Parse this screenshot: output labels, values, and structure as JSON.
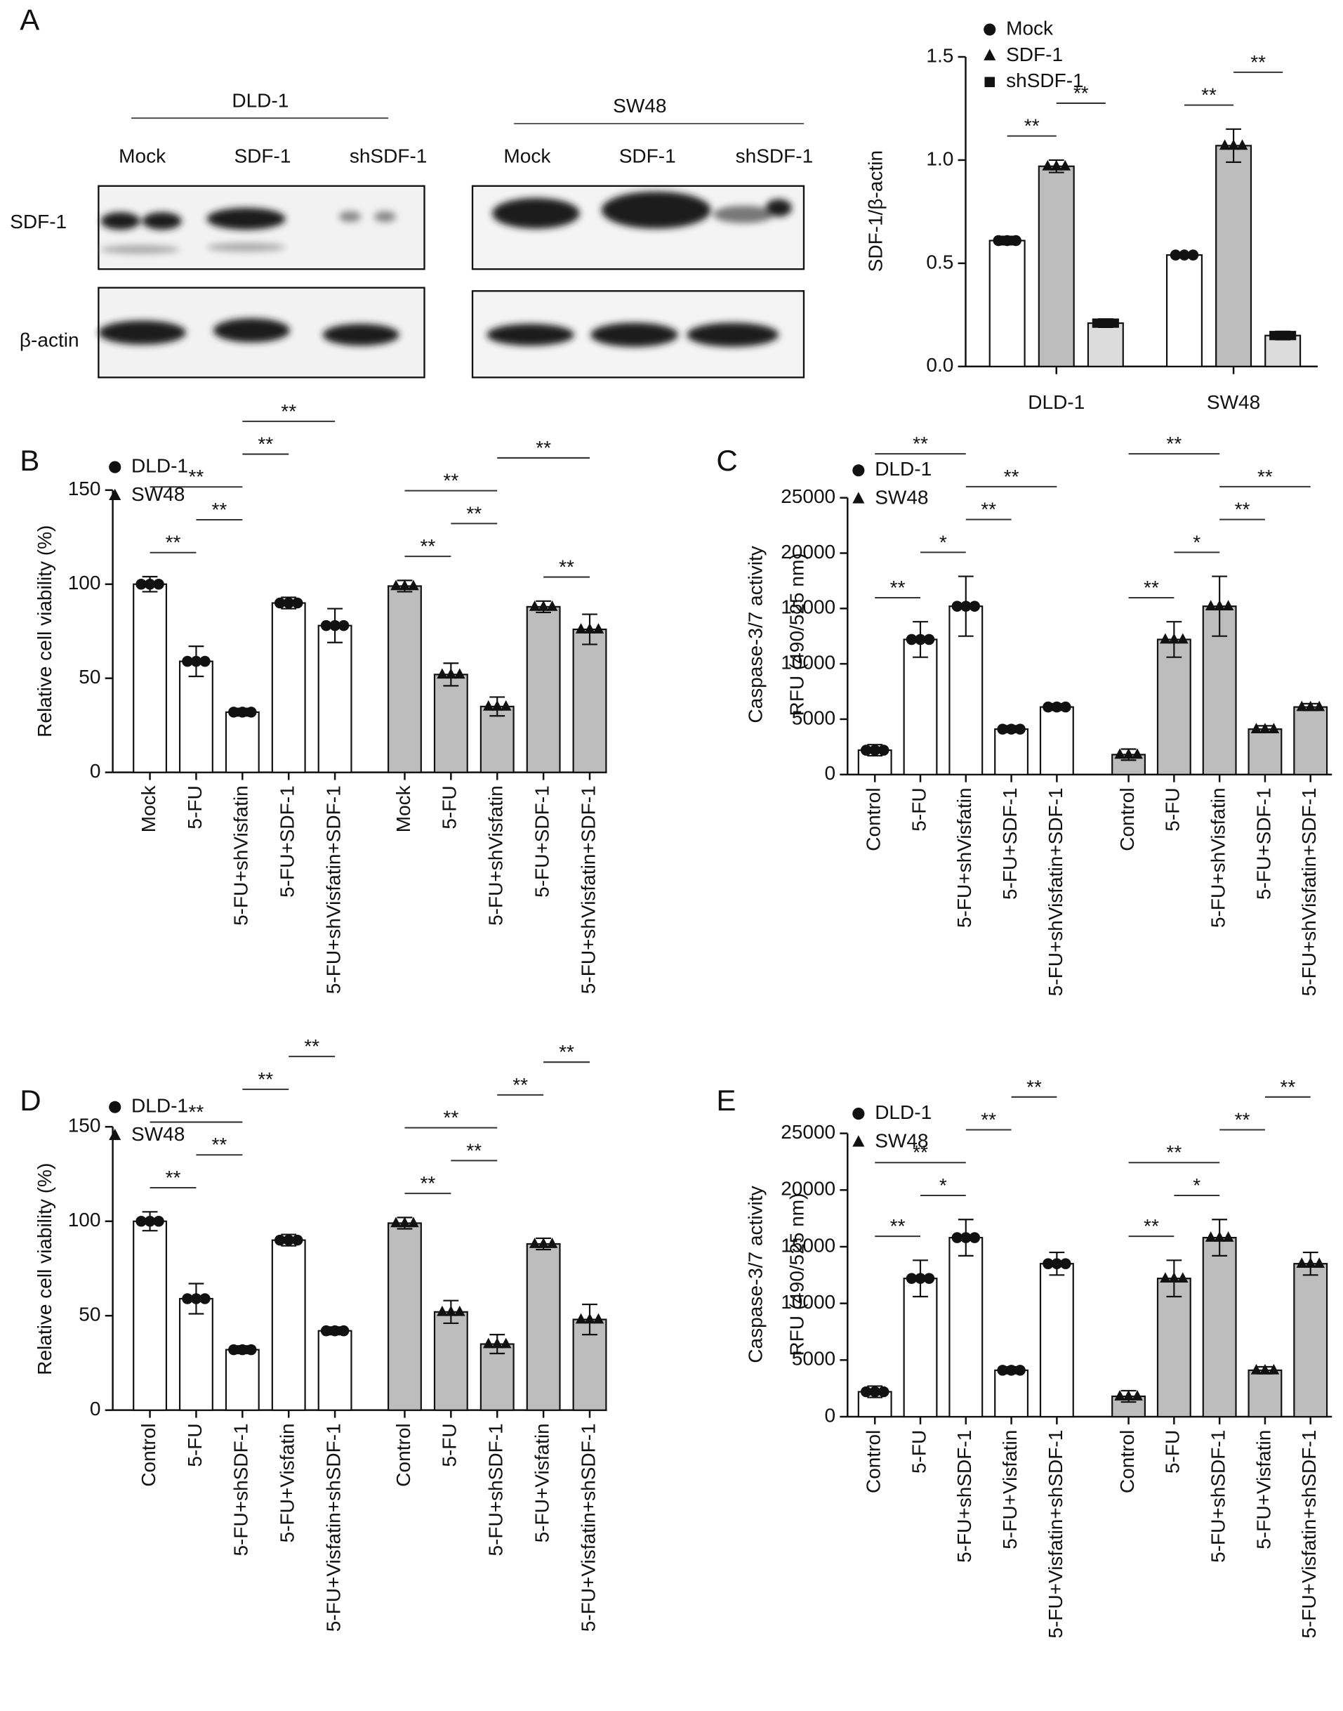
{
  "blot": {
    "cell_lines": [
      "DLD-1",
      "SW48"
    ],
    "lanes": [
      "Mock",
      "SDF-1",
      "shSDF-1"
    ],
    "proteins": [
      "SDF-1",
      "β-actin"
    ]
  },
  "chart_data": [
    {
      "type": "groupbar",
      "panel": "A",
      "ylabel": "SDF-1/β-actin",
      "categories": [
        "DLD-1",
        "SW48"
      ],
      "series": [
        {
          "name": "Mock",
          "color": "#ffffff",
          "marker": "circle",
          "values": [
            0.61,
            0.54
          ],
          "errors": [
            0.02,
            0.01
          ]
        },
        {
          "name": "SDF-1",
          "color": "#bdbdbd",
          "marker": "triangle",
          "values": [
            0.97,
            1.07
          ],
          "errors": [
            0.03,
            0.08
          ]
        },
        {
          "name": "shSDF-1",
          "color": "#dcdcdc",
          "marker": "square",
          "values": [
            0.21,
            0.15
          ],
          "errors": [
            0.02,
            0.02
          ]
        }
      ],
      "brackets": [
        {
          "category": 0,
          "from": 0,
          "to": 1,
          "label": "**"
        },
        {
          "category": 0,
          "from": 1,
          "to": 2,
          "label": "**"
        },
        {
          "category": 1,
          "from": 0,
          "to": 1,
          "label": "**"
        },
        {
          "category": 1,
          "from": 1,
          "to": 2,
          "label": "**"
        }
      ],
      "ylim": [
        0,
        1.5
      ],
      "yticks": [
        {
          "value": 0,
          "label": "0.0"
        },
        0.5,
        {
          "value": 1,
          "label": "1.0"
        },
        1.5
      ]
    },
    {
      "type": "blockbar",
      "panel": "B",
      "ylabel": "Relative cell viability (%)",
      "categories": [
        "Mock",
        "5-FU",
        "5-FU+shVisfatin",
        "5-FU+SDF-1",
        "5-FU+shVisfatin+SDF-1"
      ],
      "series": [
        {
          "name": "DLD-1",
          "color": "#ffffff",
          "marker": "circle",
          "values": [
            100,
            59,
            32,
            90,
            78
          ],
          "errors": [
            4,
            8,
            2,
            3,
            9
          ],
          "brackets": [
            {
              "from": 0,
              "to": 1,
              "label": "**"
            },
            {
              "from": 1,
              "to": 2,
              "label": "**"
            },
            {
              "from": 0,
              "to": 2,
              "label": "**"
            },
            {
              "from": 2,
              "to": 3,
              "label": "**"
            },
            {
              "from": 2,
              "to": 4,
              "label": "**"
            }
          ]
        },
        {
          "name": "SW48",
          "color": "#bdbdbd",
          "marker": "triangle",
          "values": [
            99,
            52,
            35,
            88,
            76
          ],
          "errors": [
            3,
            6,
            5,
            3,
            8
          ],
          "brackets": [
            {
              "from": 0,
              "to": 1,
              "label": "**"
            },
            {
              "from": 1,
              "to": 2,
              "label": "**"
            },
            {
              "from": 0,
              "to": 2,
              "label": "**"
            },
            {
              "from": 3,
              "to": 4,
              "label": "**"
            },
            {
              "from": 2,
              "to": 4,
              "label": "**"
            }
          ]
        }
      ],
      "ylim": [
        0,
        150
      ],
      "yticks": [
        0,
        50,
        100,
        150
      ]
    },
    {
      "type": "blockbar",
      "panel": "C",
      "ylabel": [
        "Caspase-3/7 activity",
        "RFU (490/525 nm)"
      ],
      "categories": [
        "Control",
        "5-FU",
        "5-FU+shVisfatin",
        "5-FU+SDF-1",
        "5-FU+shVisfatin+SDF-1"
      ],
      "series": [
        {
          "name": "DLD-1",
          "color": "#ffffff",
          "marker": "circle",
          "values": [
            2200,
            12200,
            15200,
            4100,
            6100
          ],
          "errors": [
            500,
            1600,
            2700,
            300,
            300
          ],
          "brackets": [
            {
              "from": 0,
              "to": 1,
              "label": "**"
            },
            {
              "from": 1,
              "to": 2,
              "label": "*"
            },
            {
              "from": 2,
              "to": 3,
              "label": "**"
            },
            {
              "from": 2,
              "to": 4,
              "label": "**"
            },
            {
              "from": 0,
              "to": 2,
              "label": "**"
            }
          ]
        },
        {
          "name": "SW48",
          "color": "#bdbdbd",
          "marker": "triangle",
          "values": [
            1800,
            12200,
            15200,
            4100,
            6100
          ],
          "errors": [
            500,
            1600,
            2700,
            300,
            300
          ],
          "brackets": [
            {
              "from": 0,
              "to": 1,
              "label": "**"
            },
            {
              "from": 1,
              "to": 2,
              "label": "*"
            },
            {
              "from": 2,
              "to": 3,
              "label": "**"
            },
            {
              "from": 2,
              "to": 4,
              "label": "**"
            },
            {
              "from": 0,
              "to": 2,
              "label": "**"
            }
          ]
        }
      ],
      "ylim": [
        0,
        25000
      ],
      "yticks": [
        0,
        5000,
        10000,
        15000,
        20000,
        25000
      ]
    },
    {
      "type": "blockbar",
      "panel": "D",
      "ylabel": "Relative cell viability (%)",
      "categories": [
        "Control",
        "5-FU",
        "5-FU+shSDF-1",
        "5-FU+Visfatin",
        "5-FU+Visfatin+shSDF-1"
      ],
      "series": [
        {
          "name": "DLD-1",
          "color": "#ffffff",
          "marker": "circle",
          "values": [
            100,
            59,
            32,
            90,
            42
          ],
          "errors": [
            5,
            8,
            2,
            3,
            2
          ],
          "brackets": [
            {
              "from": 0,
              "to": 1,
              "label": "**"
            },
            {
              "from": 1,
              "to": 2,
              "label": "**"
            },
            {
              "from": 0,
              "to": 2,
              "label": "**"
            },
            {
              "from": 2,
              "to": 3,
              "label": "**"
            },
            {
              "from": 3,
              "to": 4,
              "label": "**"
            }
          ]
        },
        {
          "name": "SW48",
          "color": "#bdbdbd",
          "marker": "triangle",
          "values": [
            99,
            52,
            35,
            88,
            48
          ],
          "errors": [
            3,
            6,
            5,
            3,
            8
          ],
          "brackets": [
            {
              "from": 0,
              "to": 1,
              "label": "**"
            },
            {
              "from": 1,
              "to": 2,
              "label": "**"
            },
            {
              "from": 0,
              "to": 2,
              "label": "**"
            },
            {
              "from": 2,
              "to": 3,
              "label": "**"
            },
            {
              "from": 3,
              "to": 4,
              "label": "**"
            }
          ]
        }
      ],
      "ylim": [
        0,
        150
      ],
      "yticks": [
        0,
        50,
        100,
        150
      ]
    },
    {
      "type": "blockbar",
      "panel": "E",
      "ylabel": [
        "Caspase-3/7 activity",
        "RFU (490/525 nm)"
      ],
      "categories": [
        "Control",
        "5-FU",
        "5-FU+shSDF-1",
        "5-FU+Visfatin",
        "5-FU+Visfatin+shSDF-1"
      ],
      "series": [
        {
          "name": "DLD-1",
          "color": "#ffffff",
          "marker": "circle",
          "values": [
            2200,
            12200,
            15800,
            4100,
            13500
          ],
          "errors": [
            500,
            1600,
            1600,
            300,
            1000
          ],
          "brackets": [
            {
              "from": 0,
              "to": 1,
              "label": "**"
            },
            {
              "from": 1,
              "to": 2,
              "label": "*"
            },
            {
              "from": 0,
              "to": 2,
              "label": "**"
            },
            {
              "from": 2,
              "to": 3,
              "label": "**"
            },
            {
              "from": 3,
              "to": 4,
              "label": "**"
            }
          ]
        },
        {
          "name": "SW48",
          "color": "#bdbdbd",
          "marker": "triangle",
          "values": [
            1800,
            12200,
            15800,
            4100,
            13500
          ],
          "errors": [
            500,
            1600,
            1600,
            300,
            1000
          ],
          "brackets": [
            {
              "from": 0,
              "to": 1,
              "label": "**"
            },
            {
              "from": 1,
              "to": 2,
              "label": "*"
            },
            {
              "from": 0,
              "to": 2,
              "label": "**"
            },
            {
              "from": 2,
              "to": 3,
              "label": "**"
            },
            {
              "from": 3,
              "to": 4,
              "label": "**"
            }
          ]
        }
      ],
      "ylim": [
        0,
        25000
      ],
      "yticks": [
        0,
        5000,
        10000,
        15000,
        20000,
        25000
      ]
    }
  ]
}
